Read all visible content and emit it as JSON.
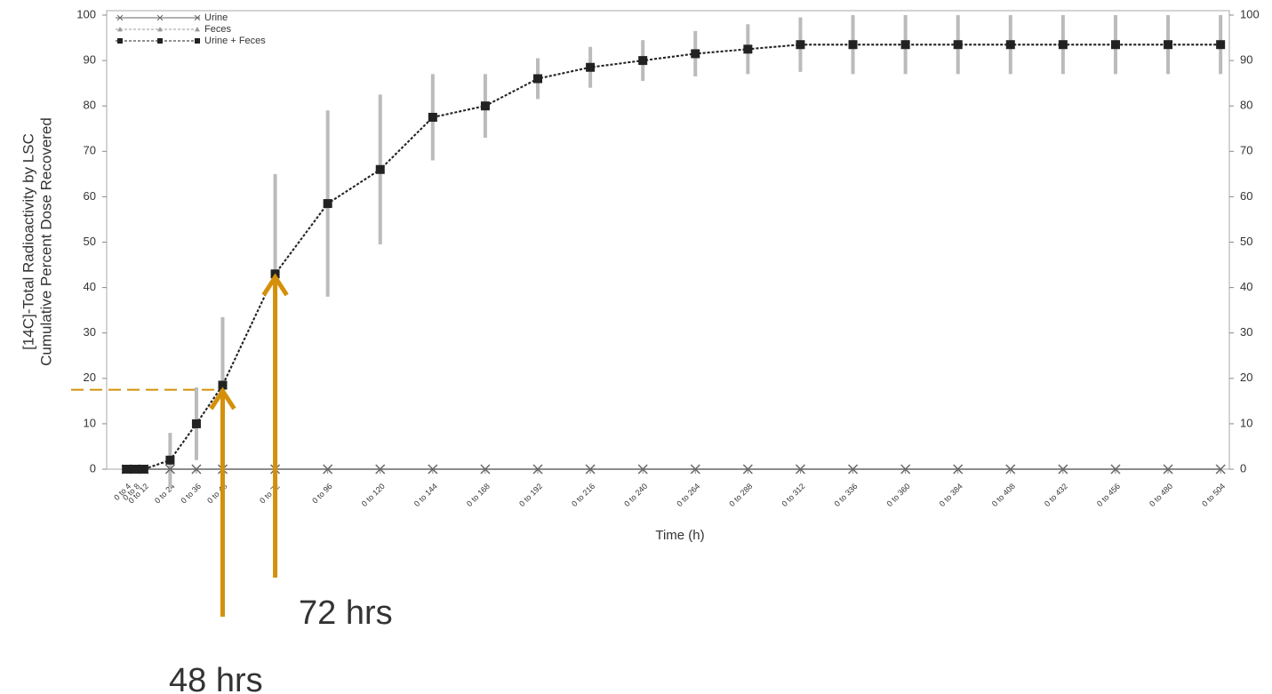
{
  "chart_data": {
    "type": "line",
    "y_label_lines": [
      "[14C]-Total Radioactivity by LSC",
      "Cumulative Percent Dose Recovered"
    ],
    "x_label": "Time (h)",
    "x": [
      4,
      8,
      12,
      24,
      36,
      48,
      72,
      96,
      120,
      144,
      168,
      192,
      216,
      240,
      264,
      288,
      312,
      336,
      360,
      384,
      408,
      432,
      456,
      480,
      504
    ],
    "xticks": [
      {
        "value": 4,
        "label": "0 to 4"
      },
      {
        "value": 8,
        "label": "0 to 8"
      },
      {
        "value": 12,
        "label": "0 to 12"
      },
      {
        "value": 24,
        "label": "0 to 24"
      },
      {
        "value": 36,
        "label": "0 to 36"
      },
      {
        "value": 48,
        "label": "0 to 48"
      },
      {
        "value": 72,
        "label": "0 to 72"
      },
      {
        "value": 96,
        "label": "0 to 96"
      },
      {
        "value": 120,
        "label": "0 to 120"
      },
      {
        "value": 144,
        "label": "0 to 144"
      },
      {
        "value": 168,
        "label": "0 to 168"
      },
      {
        "value": 192,
        "label": "0 to 192"
      },
      {
        "value": 216,
        "label": "0 to 216"
      },
      {
        "value": 240,
        "label": "0 to 240"
      },
      {
        "value": 264,
        "label": "0 to 264"
      },
      {
        "value": 288,
        "label": "0 to 288"
      },
      {
        "value": 312,
        "label": "0 to 312"
      },
      {
        "value": 336,
        "label": "0 to 336"
      },
      {
        "value": 360,
        "label": "0 to 360"
      },
      {
        "value": 384,
        "label": "0 to 384"
      },
      {
        "value": 408,
        "label": "0 to 408"
      },
      {
        "value": 432,
        "label": "0 to 432"
      },
      {
        "value": 456,
        "label": "0 to 456"
      },
      {
        "value": 480,
        "label": "0 to 480"
      },
      {
        "value": 504,
        "label": "0 to 504"
      }
    ],
    "xlim": [
      -5,
      508
    ],
    "ylim": [
      0,
      100
    ],
    "yticks": [
      0,
      10,
      20,
      30,
      40,
      50,
      60,
      70,
      80,
      90,
      100
    ],
    "legend_position": "upper-left",
    "series": [
      {
        "name": "Urine",
        "color": "#666666",
        "marker": "x",
        "values": [
          0,
          0,
          0,
          0,
          0,
          0,
          0,
          0,
          0,
          0,
          0,
          0,
          0,
          0,
          0,
          0,
          0,
          0,
          0,
          0,
          0,
          0,
          0,
          0,
          0
        ]
      },
      {
        "name": "Feces",
        "color": "#999999",
        "marker": "triangle",
        "values": [
          0,
          0,
          0,
          2,
          10,
          18.5,
          43,
          58.5,
          66,
          77.5,
          80,
          86,
          88.5,
          90,
          91.5,
          92.5,
          93.5,
          93.5,
          93.5,
          93.5,
          93.5,
          93.5,
          93.5,
          93.5,
          93.5
        ]
      },
      {
        "name": "Urine + Feces",
        "color": "#222222",
        "marker": "square",
        "values": [
          0,
          0,
          0,
          2,
          10,
          18.5,
          43,
          58.5,
          66,
          77.5,
          80,
          86,
          88.5,
          90,
          91.5,
          92.5,
          93.5,
          93.5,
          93.5,
          93.5,
          93.5,
          93.5,
          93.5,
          93.5,
          93.5
        ],
        "errors": [
          0,
          0,
          0,
          6,
          8,
          15,
          22,
          20.5,
          16.5,
          9.5,
          7,
          4.5,
          4.5,
          4.5,
          5,
          5.5,
          6,
          6.5,
          6.5,
          6.5,
          6.5,
          6.5,
          6.5,
          6.5,
          6.5
        ]
      }
    ],
    "reference_line": {
      "y": 17.5,
      "color": "#d4900a"
    },
    "annotations": [
      {
        "text": "48 hrs",
        "x": 48,
        "color": "#d4900a"
      },
      {
        "text": "72 hrs",
        "x": 72,
        "color": "#d4900a"
      }
    ]
  }
}
